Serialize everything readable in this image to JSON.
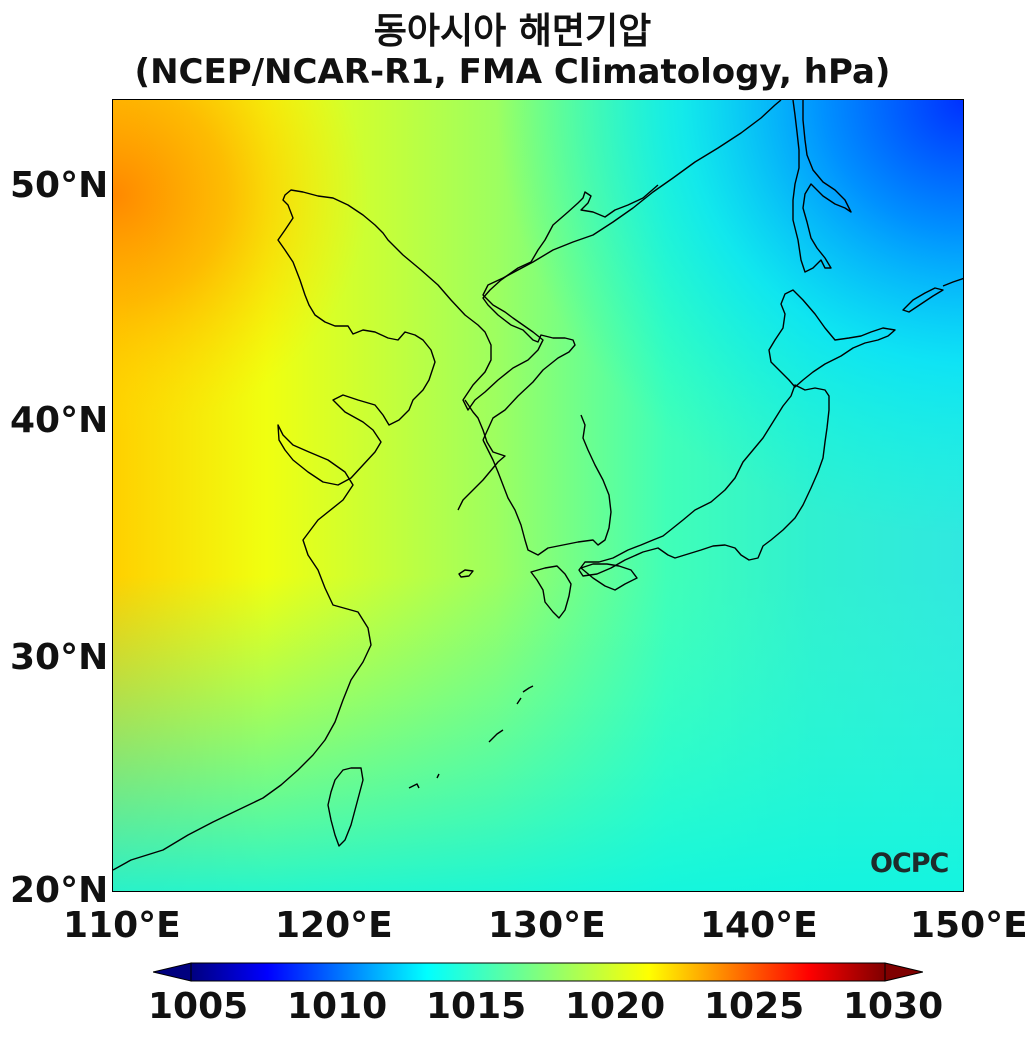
{
  "title": {
    "line1": "동아시아 해면기압",
    "line2": "(NCEP/NCAR-R1, FMA Climatology, hPa)"
  },
  "map": {
    "type": "filled-contour",
    "variable": "sea level pressure",
    "lon_range": [
      110,
      150
    ],
    "lat_range": [
      20,
      53.5
    ],
    "lon_ticks": [
      "110°E",
      "120°E",
      "130°E",
      "140°E",
      "150°E"
    ],
    "lat_ticks": [
      "20°N",
      "30°N",
      "40°N",
      "50°N"
    ],
    "colormap": "jet",
    "coastlines": true
  },
  "colorbar": {
    "min": 1005,
    "max": 1030,
    "ticks": [
      "1005",
      "1010",
      "1015",
      "1020",
      "1025",
      "1030"
    ],
    "orientation": "horizontal",
    "extend": "both"
  },
  "logo": {
    "text": "OCPC"
  }
}
